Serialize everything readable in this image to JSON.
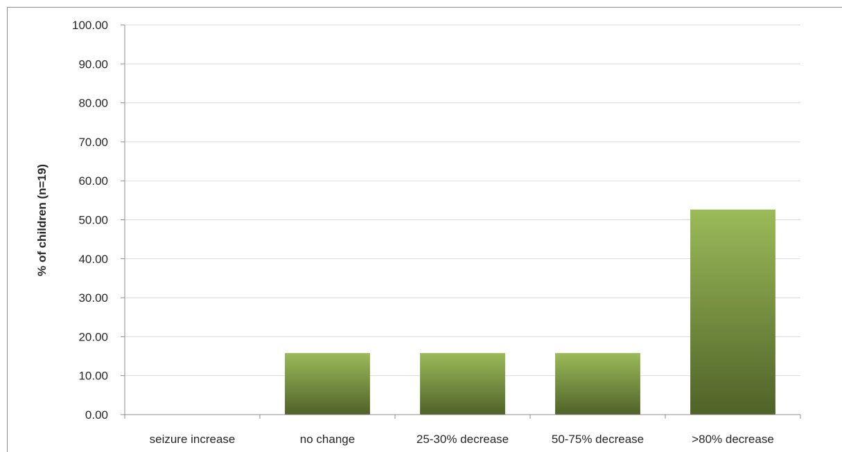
{
  "chart_data": {
    "type": "bar",
    "title": "",
    "xlabel": "",
    "ylabel": "% of children (n=19)",
    "categories": [
      "seizure increase",
      "no change",
      "25-30% decrease",
      "50-75% decrease",
      ">80% decrease"
    ],
    "values": [
      0.0,
      15.79,
      15.79,
      15.79,
      52.63
    ],
    "ylim": [
      0,
      100
    ],
    "yticks": [
      "0.00",
      "10.00",
      "20.00",
      "30.00",
      "40.00",
      "50.00",
      "60.00",
      "70.00",
      "80.00",
      "90.00",
      "100.00"
    ],
    "ytick_values": [
      0,
      10,
      20,
      30,
      40,
      50,
      60,
      70,
      80,
      90,
      100
    ],
    "grid": true,
    "legend": "none",
    "colors": {
      "bar_top": "#9bbb59",
      "bar_bottom": "#4f6228",
      "gridline": "#d9d9d9",
      "axis": "#8c8c8c"
    }
  }
}
